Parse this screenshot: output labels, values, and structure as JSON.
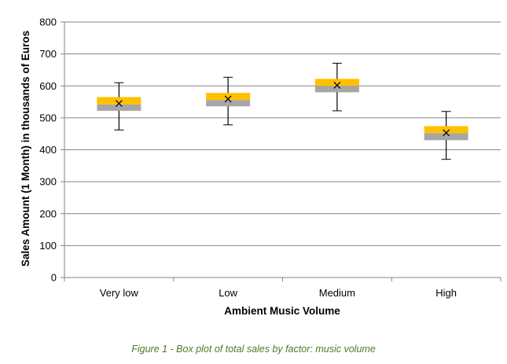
{
  "chart_data": {
    "type": "box",
    "title": "",
    "xlabel": "Ambient Music Volume",
    "ylabel": "Sales Amount (1 Month) in thousands of Euros",
    "ylim": [
      0,
      800
    ],
    "yticks": [
      0,
      100,
      200,
      300,
      400,
      500,
      600,
      700,
      800
    ],
    "grid": true,
    "categories": [
      "Very low",
      "Low",
      "Medium",
      "High"
    ],
    "boxes": [
      {
        "category": "Very low",
        "min": 462,
        "q1": 522,
        "median": 542,
        "q3": 565,
        "max": 610,
        "mean": 545
      },
      {
        "category": "Low",
        "min": 478,
        "q1": 536,
        "median": 556,
        "q3": 578,
        "max": 627,
        "mean": 559
      },
      {
        "category": "Medium",
        "min": 522,
        "q1": 580,
        "median": 600,
        "q3": 622,
        "max": 671,
        "mean": 602
      },
      {
        "category": "High",
        "min": 370,
        "q1": 430,
        "median": 452,
        "q3": 474,
        "max": 520,
        "mean": 453
      }
    ],
    "colors": {
      "lower_box": "#a6a6a6",
      "upper_box": "#ffc000",
      "grid": "#868686",
      "whisker": "#000000"
    }
  },
  "caption": "Figure 1 - Box plot of total sales by factor: music volume"
}
